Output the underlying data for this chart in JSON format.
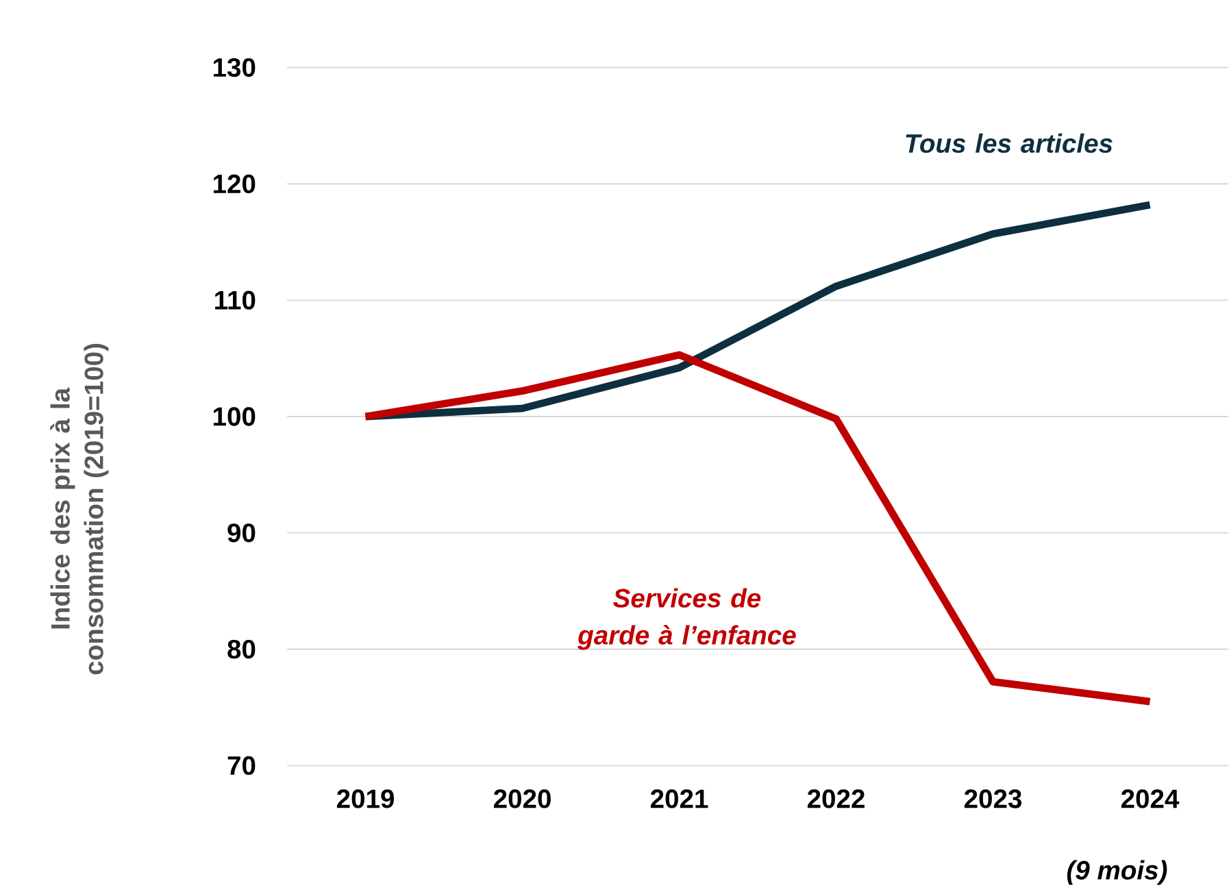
{
  "chart_data": {
    "type": "line",
    "ylabel": "Indice des prix à la consommation (2019=100)",
    "categories": [
      "2019",
      "2020",
      "2021",
      "2022",
      "2023",
      "2024"
    ],
    "ylim": [
      70,
      130
    ],
    "yticks": [
      70,
      80,
      90,
      100,
      110,
      120,
      130
    ],
    "grid": "y",
    "legend": false,
    "marker": "none",
    "line_style": "solid",
    "series": [
      {
        "name": "Tous les articles",
        "color": "#0e2f40",
        "values": [
          100,
          100.7,
          104.2,
          111.2,
          115.7,
          118.2
        ]
      },
      {
        "name": "Services de garde à l’enfance",
        "color": "#c00000",
        "values": [
          100,
          102.2,
          105.3,
          99.8,
          77.2,
          75.5
        ]
      }
    ],
    "annotations": [
      "(9 mois)"
    ]
  }
}
